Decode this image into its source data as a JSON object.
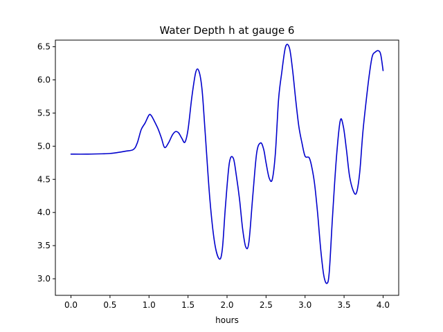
{
  "chart_data": {
    "type": "line",
    "title": "Water Depth h at gauge 6",
    "xlabel": "hours",
    "ylabel": "",
    "xlim": [
      -0.2,
      4.2
    ],
    "ylim": [
      2.75,
      6.6
    ],
    "xticks": [
      0.0,
      0.5,
      1.0,
      1.5,
      2.0,
      2.5,
      3.0,
      3.5,
      4.0
    ],
    "xtick_labels": [
      "0.0",
      "0.5",
      "1.0",
      "1.5",
      "2.0",
      "2.5",
      "3.0",
      "3.5",
      "4.0"
    ],
    "yticks": [
      3.0,
      3.5,
      4.0,
      4.5,
      5.0,
      5.5,
      6.0,
      6.5
    ],
    "ytick_labels": [
      "3.0",
      "3.5",
      "4.0",
      "4.5",
      "5.0",
      "5.5",
      "6.0",
      "6.5"
    ],
    "grid": false,
    "legend": "none",
    "series": [
      {
        "color": "#0000cc",
        "x": [
          0.0,
          0.2,
          0.4,
          0.5,
          0.6,
          0.7,
          0.8,
          0.85,
          0.9,
          0.95,
          1.0,
          1.03,
          1.08,
          1.12,
          1.16,
          1.2,
          1.25,
          1.3,
          1.34,
          1.38,
          1.42,
          1.46,
          1.5,
          1.55,
          1.6,
          1.64,
          1.68,
          1.72,
          1.78,
          1.84,
          1.9,
          1.94,
          1.98,
          2.03,
          2.08,
          2.12,
          2.16,
          2.2,
          2.24,
          2.28,
          2.33,
          2.38,
          2.43,
          2.47,
          2.5,
          2.54,
          2.58,
          2.62,
          2.66,
          2.7,
          2.75,
          2.8,
          2.84,
          2.88,
          2.92,
          2.96,
          3.0,
          3.05,
          3.08,
          3.12,
          3.16,
          3.2,
          3.24,
          3.28,
          3.31,
          3.35,
          3.4,
          3.45,
          3.49,
          3.53,
          3.57,
          3.62,
          3.66,
          3.7,
          3.74,
          3.78,
          3.82,
          3.86,
          3.9,
          3.94,
          3.97,
          4.0
        ],
        "y": [
          4.88,
          4.88,
          4.885,
          4.89,
          4.905,
          4.925,
          4.95,
          5.05,
          5.25,
          5.35,
          5.47,
          5.46,
          5.35,
          5.25,
          5.12,
          4.98,
          5.05,
          5.17,
          5.22,
          5.2,
          5.12,
          5.06,
          5.25,
          5.75,
          6.12,
          6.13,
          5.85,
          5.2,
          4.2,
          3.55,
          3.3,
          3.45,
          4.1,
          4.75,
          4.82,
          4.55,
          4.2,
          3.75,
          3.48,
          3.55,
          4.25,
          4.9,
          5.05,
          4.95,
          4.75,
          4.52,
          4.5,
          4.9,
          5.7,
          6.1,
          6.5,
          6.48,
          6.15,
          5.7,
          5.3,
          5.05,
          4.85,
          4.83,
          4.72,
          4.45,
          4.0,
          3.45,
          3.05,
          2.93,
          3.1,
          3.9,
          4.8,
          5.38,
          5.3,
          4.95,
          4.55,
          4.32,
          4.3,
          4.6,
          5.2,
          5.65,
          6.05,
          6.35,
          6.42,
          6.44,
          6.38,
          6.14
        ]
      }
    ]
  }
}
